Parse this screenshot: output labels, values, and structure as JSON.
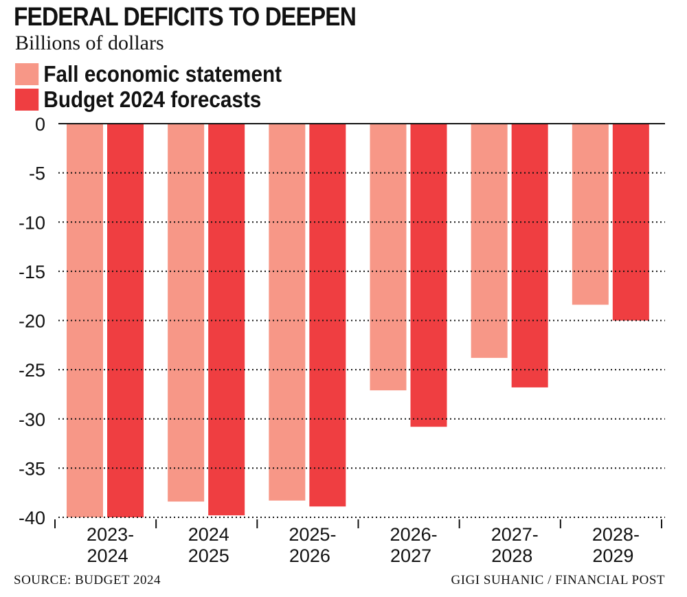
{
  "chart_data": {
    "type": "bar",
    "title": "FEDERAL DEFICITS TO DEEPEN",
    "subtitle": "Billions of dollars",
    "categories": [
      [
        "2023-",
        "2024"
      ],
      [
        "2024",
        "2025"
      ],
      [
        "2025-",
        "2026"
      ],
      [
        "2026-",
        "2027"
      ],
      [
        "2027-",
        "2028"
      ],
      [
        "2028-",
        "2029"
      ]
    ],
    "series": [
      {
        "name": "Fall economic statement",
        "color": "#f79787",
        "values": [
          -40,
          -38.4,
          -38.3,
          -27.1,
          -23.8,
          -18.4
        ]
      },
      {
        "name": "Budget 2024 forecasts",
        "color": "#ef3e41",
        "values": [
          -40,
          -39.8,
          -38.9,
          -30.8,
          -26.8,
          -20.0
        ]
      }
    ],
    "ylim": [
      -40,
      0
    ],
    "yticks": [
      0,
      -5,
      -10,
      -15,
      -20,
      -25,
      -30,
      -35,
      -40
    ],
    "grid": "dotted horizontal",
    "legend": "top-left",
    "source": "SOURCE: BUDGET 2024",
    "credit": "GIGI SUHANIC / FINANCIAL POST"
  }
}
